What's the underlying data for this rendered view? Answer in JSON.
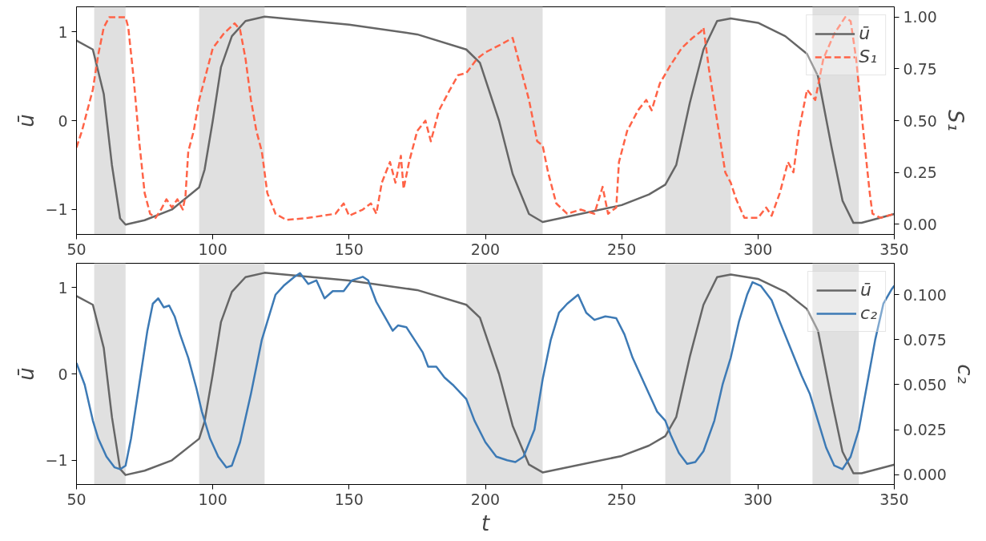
{
  "chart_data": [
    {
      "type": "line",
      "ylabel": "ū",
      "y2label": "S₁",
      "xlim": [
        50,
        350
      ],
      "xticks": [
        50,
        100,
        150,
        200,
        250,
        300,
        350
      ],
      "ylim": [
        -1.28,
        1.28
      ],
      "yticks": [
        -1,
        0,
        1
      ],
      "y2lim": [
        -0.05,
        1.05
      ],
      "y2ticks": [
        {
          "value": 0,
          "label": "0.00"
        },
        {
          "value": 0.25,
          "label": "0.25"
        },
        {
          "value": 0.5,
          "label": "0.50"
        },
        {
          "value": 0.75,
          "label": "0.75"
        },
        {
          "value": 1,
          "label": "1.00"
        }
      ],
      "grid": false,
      "legend": "top right",
      "bands": [
        {
          "axis": "x",
          "from": 56.5,
          "to": 68,
          "color": "#e0e0e0"
        },
        {
          "axis": "x",
          "from": 95,
          "to": 119,
          "color": "#e0e0e0"
        },
        {
          "axis": "x",
          "from": 193,
          "to": 221,
          "color": "#e0e0e0"
        },
        {
          "axis": "x",
          "from": 266,
          "to": 290,
          "color": "#e0e0e0"
        },
        {
          "axis": "x",
          "from": 320,
          "to": 337,
          "color": "#e0e0e0"
        }
      ],
      "series": [
        {
          "name": "ū",
          "color": "#666666",
          "line_style": "solid",
          "x": [
            50,
            56,
            60,
            63,
            66,
            68,
            75,
            85,
            95,
            97,
            100,
            103,
            107,
            112,
            119,
            150,
            175,
            193,
            198,
            205,
            210,
            216,
            221,
            250,
            260,
            266,
            270,
            275,
            280,
            285,
            290,
            300,
            310,
            318,
            322,
            327,
            331,
            335,
            338,
            350
          ],
          "values": [
            0.9,
            0.8,
            0.3,
            -0.5,
            -1.1,
            -1.17,
            -1.12,
            -1.0,
            -0.75,
            -0.55,
            0,
            0.6,
            0.95,
            1.12,
            1.17,
            1.08,
            0.97,
            0.8,
            0.65,
            0,
            -0.6,
            -1.05,
            -1.14,
            -0.95,
            -0.83,
            -0.72,
            -0.5,
            0.2,
            0.8,
            1.12,
            1.15,
            1.1,
            0.95,
            0.75,
            0.5,
            -0.3,
            -0.9,
            -1.15,
            -1.15,
            -1.05
          ]
        },
        {
          "name": "S₁",
          "color": "#ff6347",
          "line_style": "dashed",
          "axis": "y2",
          "x": [
            50,
            52,
            54,
            56,
            58,
            60,
            62,
            68,
            69,
            71,
            73,
            75,
            77,
            79,
            81,
            83,
            85,
            87,
            89,
            90,
            91,
            93,
            95,
            97,
            100,
            104,
            108,
            110,
            112,
            114,
            116,
            118,
            120,
            123,
            127,
            135,
            140,
            145,
            148,
            150,
            155,
            158,
            160,
            162,
            165,
            167,
            169,
            170,
            172,
            175,
            178,
            180,
            183,
            187,
            190,
            193,
            197,
            200,
            203,
            206,
            210,
            213,
            216,
            219,
            221,
            223,
            226,
            230,
            235,
            240,
            243,
            245,
            248,
            249,
            252,
            256,
            259,
            261,
            264,
            268,
            272,
            276,
            279,
            280,
            282,
            285,
            288,
            290,
            292,
            295,
            300,
            303,
            305,
            308,
            311,
            313,
            315,
            318,
            321,
            324,
            328,
            332,
            334,
            336,
            339,
            341,
            342,
            345,
            350
          ],
          "values": [
            0.37,
            0.45,
            0.55,
            0.65,
            0.82,
            0.95,
            1.0,
            1.0,
            0.95,
            0.7,
            0.4,
            0.15,
            0.05,
            0.03,
            0.07,
            0.12,
            0.08,
            0.12,
            0.07,
            0.14,
            0.35,
            0.45,
            0.6,
            0.7,
            0.85,
            0.92,
            0.97,
            0.94,
            0.8,
            0.6,
            0.45,
            0.35,
            0.15,
            0.05,
            0.02,
            0.03,
            0.04,
            0.05,
            0.1,
            0.04,
            0.07,
            0.1,
            0.05,
            0.2,
            0.3,
            0.2,
            0.33,
            0.17,
            0.3,
            0.45,
            0.5,
            0.4,
            0.55,
            0.65,
            0.72,
            0.73,
            0.8,
            0.83,
            0.85,
            0.87,
            0.9,
            0.75,
            0.6,
            0.4,
            0.38,
            0.25,
            0.1,
            0.05,
            0.07,
            0.05,
            0.18,
            0.05,
            0.08,
            0.3,
            0.45,
            0.55,
            0.6,
            0.55,
            0.68,
            0.77,
            0.85,
            0.9,
            0.93,
            0.95,
            0.75,
            0.5,
            0.25,
            0.2,
            0.12,
            0.03,
            0.03,
            0.08,
            0.04,
            0.15,
            0.3,
            0.25,
            0.45,
            0.65,
            0.6,
            0.8,
            0.92,
            1.0,
            0.98,
            0.8,
            0.4,
            0.15,
            0.05,
            0.03,
            0.05
          ]
        }
      ]
    },
    {
      "type": "line",
      "xlabel": "t",
      "ylabel": "ū",
      "y2label": "c₂",
      "xlim": [
        50,
        350
      ],
      "xticks": [
        50,
        100,
        150,
        200,
        250,
        300,
        350
      ],
      "ylim": [
        -1.28,
        1.28
      ],
      "yticks": [
        -1,
        0,
        1
      ],
      "y2lim": [
        -0.0055,
        0.1175
      ],
      "y2ticks": [
        {
          "value": 0,
          "label": "0.000"
        },
        {
          "value": 0.025,
          "label": "0.025"
        },
        {
          "value": 0.05,
          "label": "0.050"
        },
        {
          "value": 0.075,
          "label": "0.075"
        },
        {
          "value": 0.1,
          "label": "0.100"
        }
      ],
      "grid": false,
      "legend": "top right",
      "bands": [
        {
          "axis": "x",
          "from": 56.5,
          "to": 68,
          "color": "#e0e0e0"
        },
        {
          "axis": "x",
          "from": 95,
          "to": 119,
          "color": "#e0e0e0"
        },
        {
          "axis": "x",
          "from": 193,
          "to": 221,
          "color": "#e0e0e0"
        },
        {
          "axis": "x",
          "from": 266,
          "to": 290,
          "color": "#e0e0e0"
        },
        {
          "axis": "x",
          "from": 320,
          "to": 337,
          "color": "#e0e0e0"
        }
      ],
      "series": [
        {
          "name": "ū",
          "color": "#666666",
          "line_style": "solid",
          "x": [
            50,
            56,
            60,
            63,
            66,
            68,
            75,
            85,
            95,
            97,
            100,
            103,
            107,
            112,
            119,
            150,
            175,
            193,
            198,
            205,
            210,
            216,
            221,
            250,
            260,
            266,
            270,
            275,
            280,
            285,
            290,
            300,
            310,
            318,
            322,
            327,
            331,
            335,
            338,
            350
          ],
          "values": [
            0.9,
            0.8,
            0.3,
            -0.5,
            -1.1,
            -1.17,
            -1.12,
            -1.0,
            -0.75,
            -0.55,
            0,
            0.6,
            0.95,
            1.12,
            1.17,
            1.08,
            0.97,
            0.8,
            0.65,
            0,
            -0.6,
            -1.05,
            -1.14,
            -0.95,
            -0.83,
            -0.72,
            -0.5,
            0.2,
            0.8,
            1.12,
            1.15,
            1.1,
            0.95,
            0.75,
            0.5,
            -0.3,
            -0.9,
            -1.15,
            -1.15,
            -1.05
          ]
        },
        {
          "name": "c₂",
          "color": "#3d7ab5",
          "line_style": "solid",
          "axis": "y2",
          "x": [
            50,
            53,
            56,
            58,
            61,
            64,
            66,
            68,
            70,
            73,
            76,
            78,
            80,
            82,
            84,
            86,
            88,
            91,
            94,
            96,
            99,
            102,
            105,
            107,
            110,
            114,
            118,
            120,
            123,
            126,
            130,
            132,
            135,
            138,
            141,
            144,
            148,
            151,
            155,
            157,
            160,
            163,
            166,
            168,
            171,
            174,
            177,
            179,
            182,
            185,
            188,
            193,
            196,
            200,
            204,
            208,
            211,
            214,
            218,
            221,
            224,
            227,
            230,
            234,
            237,
            240,
            244,
            248,
            251,
            254,
            257,
            260,
            263,
            266,
            268,
            271,
            274,
            277,
            280,
            284,
            287,
            290,
            293,
            296,
            298,
            301,
            305,
            308,
            312,
            316,
            319,
            322,
            325,
            328,
            331,
            334,
            337,
            340,
            343,
            346,
            349,
            350
          ],
          "values": [
            0.062,
            0.05,
            0.03,
            0.02,
            0.01,
            0.004,
            0.003,
            0.005,
            0.02,
            0.05,
            0.08,
            0.095,
            0.098,
            0.093,
            0.094,
            0.088,
            0.078,
            0.065,
            0.048,
            0.035,
            0.02,
            0.01,
            0.004,
            0.005,
            0.018,
            0.045,
            0.075,
            0.085,
            0.1,
            0.105,
            0.11,
            0.112,
            0.106,
            0.108,
            0.098,
            0.102,
            0.102,
            0.108,
            0.11,
            0.108,
            0.096,
            0.088,
            0.08,
            0.083,
            0.082,
            0.075,
            0.068,
            0.06,
            0.06,
            0.054,
            0.05,
            0.042,
            0.03,
            0.018,
            0.01,
            0.008,
            0.007,
            0.01,
            0.025,
            0.053,
            0.075,
            0.09,
            0.095,
            0.1,
            0.09,
            0.086,
            0.088,
            0.087,
            0.078,
            0.065,
            0.055,
            0.045,
            0.035,
            0.03,
            0.022,
            0.012,
            0.006,
            0.007,
            0.013,
            0.03,
            0.05,
            0.065,
            0.085,
            0.1,
            0.107,
            0.105,
            0.097,
            0.085,
            0.07,
            0.055,
            0.045,
            0.03,
            0.015,
            0.005,
            0.003,
            0.01,
            0.025,
            0.05,
            0.075,
            0.095,
            0.103,
            0.105
          ]
        }
      ]
    }
  ]
}
